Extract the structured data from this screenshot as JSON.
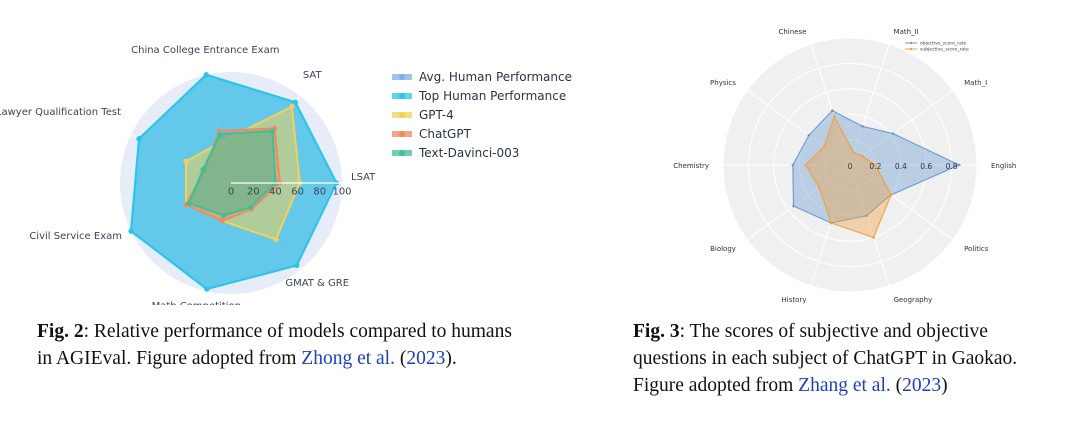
{
  "fig2": {
    "caption": {
      "label": "Fig. 2",
      "text1": ": Relative performance of models compared to humans",
      "text2": "in AGIEval. Figure adopted from ",
      "cite": "Zhong et al.",
      "open": " (",
      "year": "2023",
      "close": ")."
    }
  },
  "fig3": {
    "caption": {
      "label": "Fig. 3",
      "text1": ":  The scores of subjective and objective",
      "text2": "questions in each subject of ChatGPT in Gaokao.",
      "text3": "Figure adopted from ",
      "cite": "Zhang et al.",
      "open": " (",
      "year": "2023",
      "close": ")"
    }
  },
  "chart_data": [
    {
      "type": "radar",
      "axes": [
        "LSAT",
        "SAT",
        "China College Entrance Exam",
        "Lawyer Qualification Test",
        "Civil Service Exam",
        "Math Competition",
        "GMAT & GRE"
      ],
      "radial_ticks": [
        "0",
        "20",
        "40",
        "60",
        "80",
        "100"
      ],
      "rlim": [
        0,
        100
      ],
      "legend_position": "right",
      "background": "#e6ecf8",
      "series": [
        {
          "name": "Avg. Human Performance",
          "color": "#7fb0e6",
          "values": [
            95,
            93,
            100,
            92,
            100,
            98,
            95
          ]
        },
        {
          "name": "Top Human Performance",
          "color": "#27c7e8",
          "values": [
            95,
            93,
            100,
            92,
            100,
            98,
            95
          ]
        },
        {
          "name": "GPT-4",
          "color": "#f2d05a",
          "values": [
            62,
            88,
            38,
            45,
            45,
            35,
            65
          ]
        },
        {
          "name": "ChatGPT",
          "color": "#f08a60",
          "values": [
            44,
            63,
            48,
            26,
            45,
            35,
            30
          ]
        },
        {
          "name": "Text-Davinci-003",
          "color": "#3dbf9a",
          "values": [
            40,
            60,
            45,
            28,
            42,
            30,
            28
          ]
        }
      ]
    },
    {
      "type": "radar",
      "axes": [
        "English",
        "Math_I",
        "Math_II",
        "Chinese",
        "Physics",
        "Chemistry",
        "Biology",
        "History",
        "Geography",
        "Politics"
      ],
      "radial_ticks": [
        "0",
        "0.2",
        "0.4",
        "0.6",
        "0.8"
      ],
      "rlim": [
        0,
        1
      ],
      "grid": true,
      "legend_position": "top-right",
      "background": "#f0f0f0",
      "series": [
        {
          "name": "objective_score_rate",
          "color": "#6a9bd0",
          "values": [
            0.86,
            0.42,
            0.32,
            0.45,
            0.4,
            0.45,
            0.55,
            0.48,
            0.42,
            0.4
          ]
        },
        {
          "name": "subjective_score_rate",
          "color": "#f0a040",
          "values": [
            0.2,
            0.12,
            0.1,
            0.4,
            0.25,
            0.35,
            0.3,
            0.48,
            0.6,
            0.4
          ]
        }
      ]
    }
  ]
}
